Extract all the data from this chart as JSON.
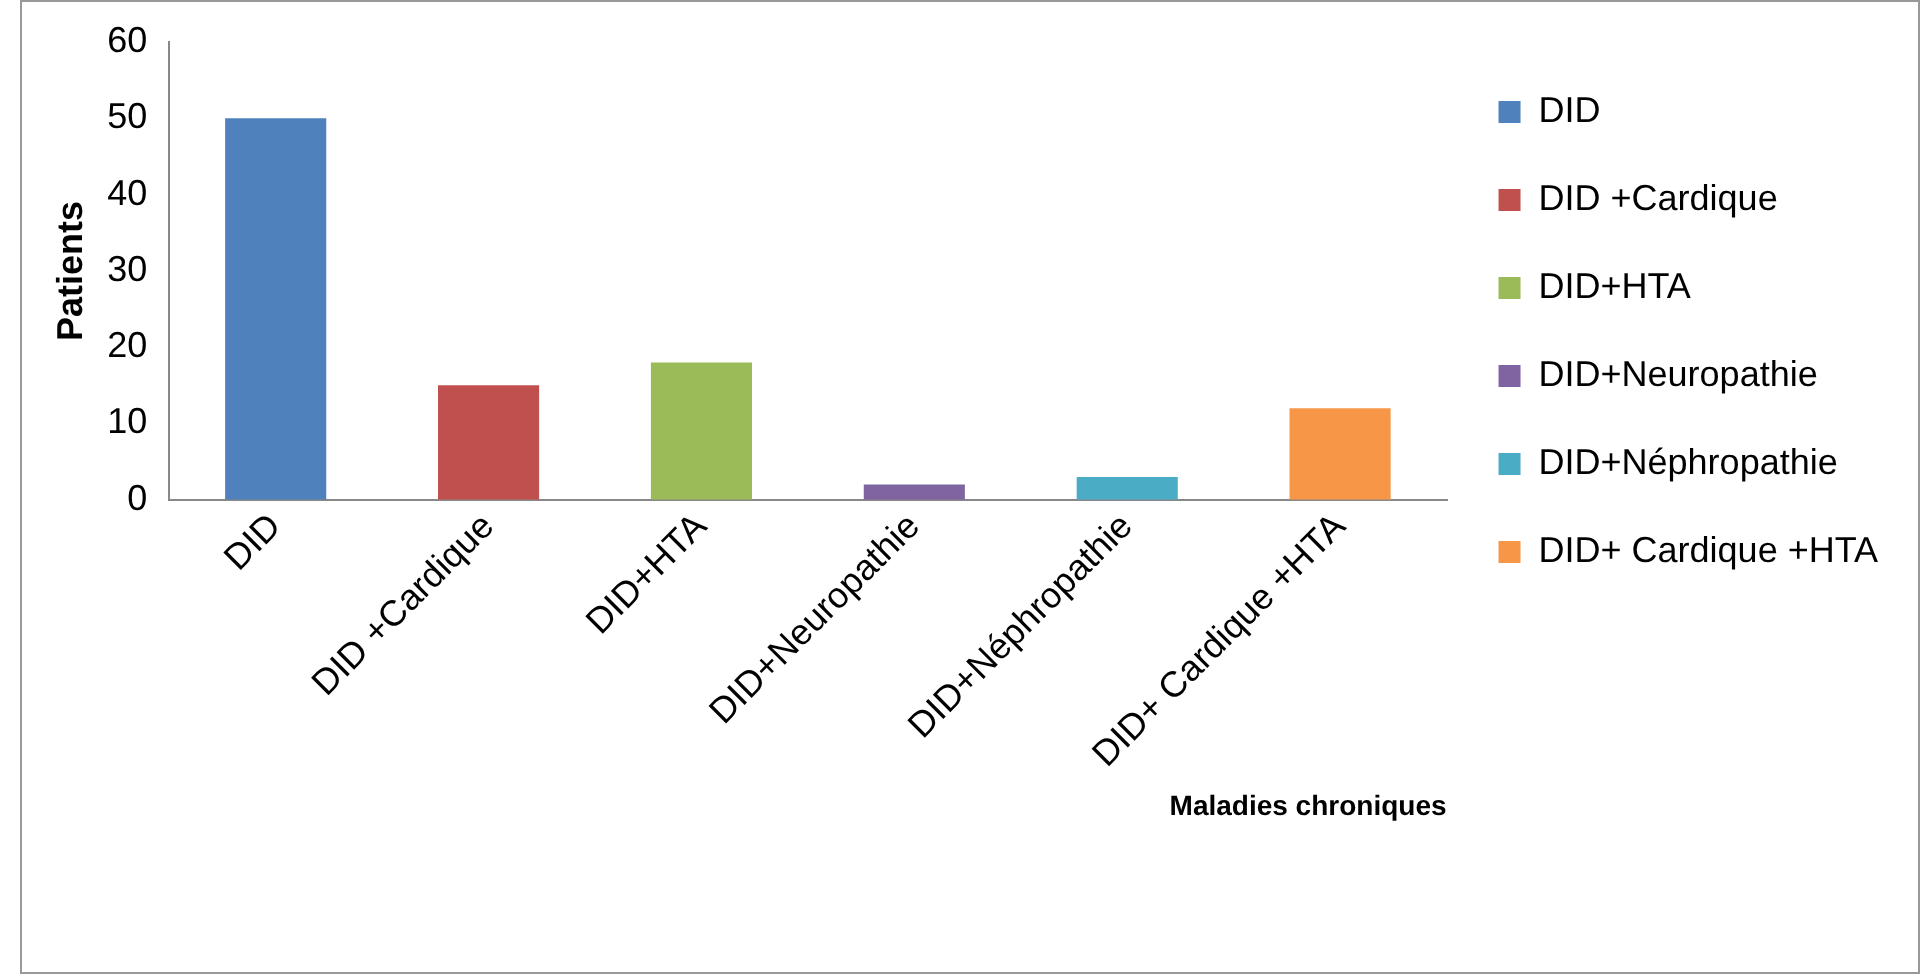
{
  "chart_data": {
    "type": "bar",
    "xlabel": "Maladies chroniques",
    "ylabel": "Patients",
    "categories": [
      "DID",
      "DID +Cardique",
      "DID+HTA",
      "DID+Neuropathie",
      "DID+Néphropathie",
      "DID+ Cardique +HTA"
    ],
    "series": [
      {
        "name": "DID",
        "color": "#4f81bd",
        "values": [
          50,
          null,
          null,
          null,
          null,
          null
        ]
      },
      {
        "name": "DID +Cardique",
        "color": "#c0504d",
        "values": [
          null,
          15,
          null,
          null,
          null,
          null
        ]
      },
      {
        "name": "DID+HTA",
        "color": "#9bbb59",
        "values": [
          null,
          null,
          18,
          null,
          null,
          null
        ]
      },
      {
        "name": "DID+Neuropathie",
        "color": "#8064a2",
        "values": [
          null,
          null,
          null,
          2,
          null,
          null
        ]
      },
      {
        "name": "DID+Néphropathie",
        "color": "#4bacc6",
        "values": [
          null,
          null,
          null,
          null,
          3,
          null
        ]
      },
      {
        "name": "DID+ Cardique +HTA",
        "color": "#f79646",
        "values": [
          null,
          null,
          null,
          null,
          null,
          12
        ]
      }
    ],
    "ylim": [
      0,
      60
    ],
    "yticks": [
      0,
      10,
      20,
      30,
      40,
      50,
      60
    ],
    "grid": false,
    "legend": "right"
  }
}
